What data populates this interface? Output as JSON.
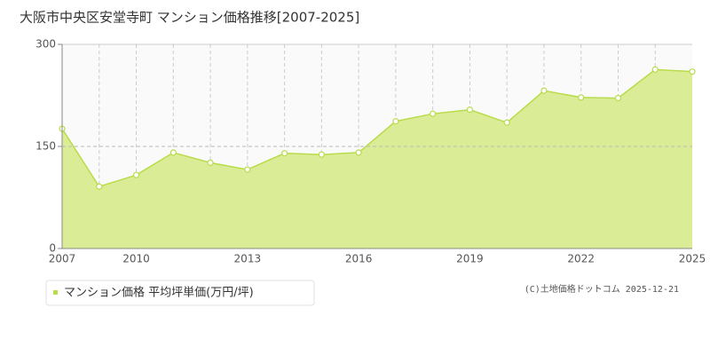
{
  "chart_data": {
    "type": "area",
    "title": "大阪市中央区安堂寺町 マンション価格推移[2007-2025]",
    "categories": [
      "2007",
      null,
      "2010",
      null,
      null,
      "2013",
      null,
      null,
      "2016",
      null,
      null,
      "2019",
      null,
      null,
      "2022",
      null,
      null,
      "2025"
    ],
    "series": [
      {
        "name": "マンション価格 平均坪単価(万円/坪)",
        "color": "#b8dc4a",
        "values": [
          176,
          91,
          108,
          141,
          126,
          116,
          140,
          138,
          141,
          187,
          198,
          204,
          185,
          232,
          222,
          221,
          263,
          260
        ]
      }
    ],
    "ylim": [
      0,
      300
    ],
    "yticks": [
      0,
      150,
      300
    ],
    "grid": true,
    "source": "(C)土地価格ドットコム 2025-12-21"
  }
}
